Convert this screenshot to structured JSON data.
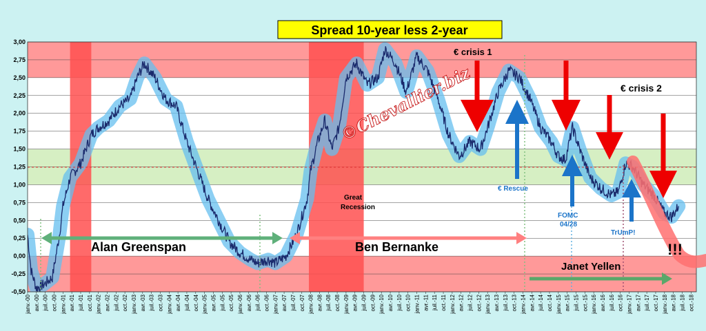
{
  "chart_data": {
    "type": "line",
    "title": "Spread 10-year less 2-year",
    "ylim": [
      -0.5,
      3.0
    ],
    "yticks": [
      "3,00",
      "2,75",
      "2,50",
      "2,25",
      "2,00",
      "1,75",
      "1,50",
      "1,25",
      "1,00",
      "0,75",
      "0,50",
      "0,25",
      "0,00",
      "-0,25",
      "-0,50"
    ],
    "xticks": [
      "janv.-00",
      "avr.-00",
      "juil.-00",
      "oct.-00",
      "janv.-01",
      "avr.-01",
      "juil.-01",
      "oct.-01",
      "janv.-02",
      "avr.-02",
      "juil.-02",
      "oct.-02",
      "janv.-03",
      "avr.-03",
      "juil.-03",
      "oct.-03",
      "janv.-04",
      "avr.-04",
      "juil.-04",
      "oct.-04",
      "janv.-05",
      "avr.-05",
      "juil.-05",
      "oct.-05",
      "janv.-06",
      "avr.-06",
      "juil.-06",
      "oct.-06",
      "janv.-07",
      "avr.-07",
      "juil.-07",
      "oct.-07",
      "janv.-08",
      "avr.-08",
      "juil.-08",
      "oct.-08",
      "janv.-09",
      "avr.-09",
      "juil.-09",
      "oct.-09",
      "janv.-10",
      "avr.-10",
      "juil.-10",
      "oct.-10",
      "janv.-11",
      "avr.-11",
      "juil.-11",
      "oct.-11",
      "janv.-12",
      "avr.-12",
      "juil.-12",
      "oct.-12",
      "janv.-13",
      "avr.-13",
      "juil.-13",
      "oct.-13",
      "janv.-14",
      "avr.-14",
      "juil.-14",
      "oct.-14",
      "janv.-15",
      "avr.-15",
      "juil.-15",
      "oct.-15",
      "janv.-16",
      "avr.-16",
      "juil.-16",
      "oct.-16",
      "janv.-17",
      "avr.-17",
      "juil.-17",
      "oct.-17",
      "janv.-18",
      "avr.-18",
      "juil.-18",
      "oct.-18"
    ],
    "series": [
      {
        "values_x": [
          2000.0,
          2000.1,
          2000.25,
          2000.45,
          2000.7,
          2000.9,
          2001.0,
          2001.2,
          2001.5,
          2001.8,
          2002.0,
          2002.3,
          2002.6,
          2002.9,
          2003.1,
          2003.3,
          2003.6,
          2003.9,
          2004.2,
          2004.5,
          2004.8,
          2005.1,
          2005.4,
          2005.7,
          2006.0,
          2006.3,
          2006.5,
          2006.8,
          2007.0,
          2007.3,
          2007.6,
          2007.9,
          2008.0,
          2008.2,
          2008.4,
          2008.6,
          2008.8,
          2009.0,
          2009.3,
          2009.6,
          2009.9,
          2010.1,
          2010.4,
          2010.7,
          2011.0,
          2011.3,
          2011.6,
          2011.9,
          2012.2,
          2012.5,
          2012.8,
          2013.0,
          2013.3,
          2013.6,
          2013.9,
          2014.2,
          2014.5,
          2014.8,
          2015.0,
          2015.2,
          2015.4,
          2015.6,
          2015.9,
          2016.2,
          2016.5,
          2016.7,
          2016.9,
          2017.1,
          2017.4,
          2017.7,
          2018.0,
          2018.2,
          2018.4
        ],
        "values_y": [
          0.3,
          -0.2,
          -0.45,
          -0.4,
          -0.3,
          0.3,
          0.7,
          1.1,
          1.3,
          1.7,
          1.8,
          1.9,
          2.1,
          2.2,
          2.5,
          2.7,
          2.5,
          2.2,
          2.1,
          1.6,
          1.2,
          0.8,
          0.5,
          0.2,
          0.05,
          -0.05,
          -0.1,
          -0.05,
          -0.1,
          0.0,
          0.3,
          0.8,
          1.2,
          1.6,
          1.9,
          1.5,
          1.8,
          2.5,
          2.7,
          2.4,
          2.5,
          2.9,
          2.7,
          2.3,
          2.8,
          2.6,
          2.2,
          1.7,
          1.4,
          1.6,
          1.5,
          1.8,
          2.3,
          2.6,
          2.5,
          2.2,
          1.8,
          1.6,
          1.4,
          1.35,
          1.8,
          1.5,
          1.1,
          0.95,
          0.85,
          0.9,
          1.3,
          1.25,
          1.0,
          0.85,
          0.6,
          0.55,
          0.7
        ]
      }
    ]
  },
  "annotations": {
    "euro_crisis_1": "€ crisis 1",
    "euro_crisis_2": "€ crisis 2",
    "euro_rescue": "€ Rescue",
    "fomc_1": "FOMC",
    "fomc_2": "04/28",
    "trump": "TrUmP!",
    "great_1": "Great",
    "great_2": "Recession",
    "greenspan": "Alan  Greenspan",
    "bernanke": "Ben  Bernanke",
    "yellen": "Janet  Yellen",
    "exclaim": "!!!",
    "watermark": "©Chevallier.biz"
  },
  "colors": {
    "background": "#ccf2f2",
    "plot_band_top": "#ff9999",
    "plot_band_mid": "#d6efc3",
    "recession": "#ff5050",
    "series": "#1a2a6c",
    "trend_band": "#66bfef",
    "red_arrow": "#ee0000",
    "blue_arrow": "#1b74c9",
    "green_arrow": "#5aa86a",
    "title_bg": "#ffff00"
  }
}
